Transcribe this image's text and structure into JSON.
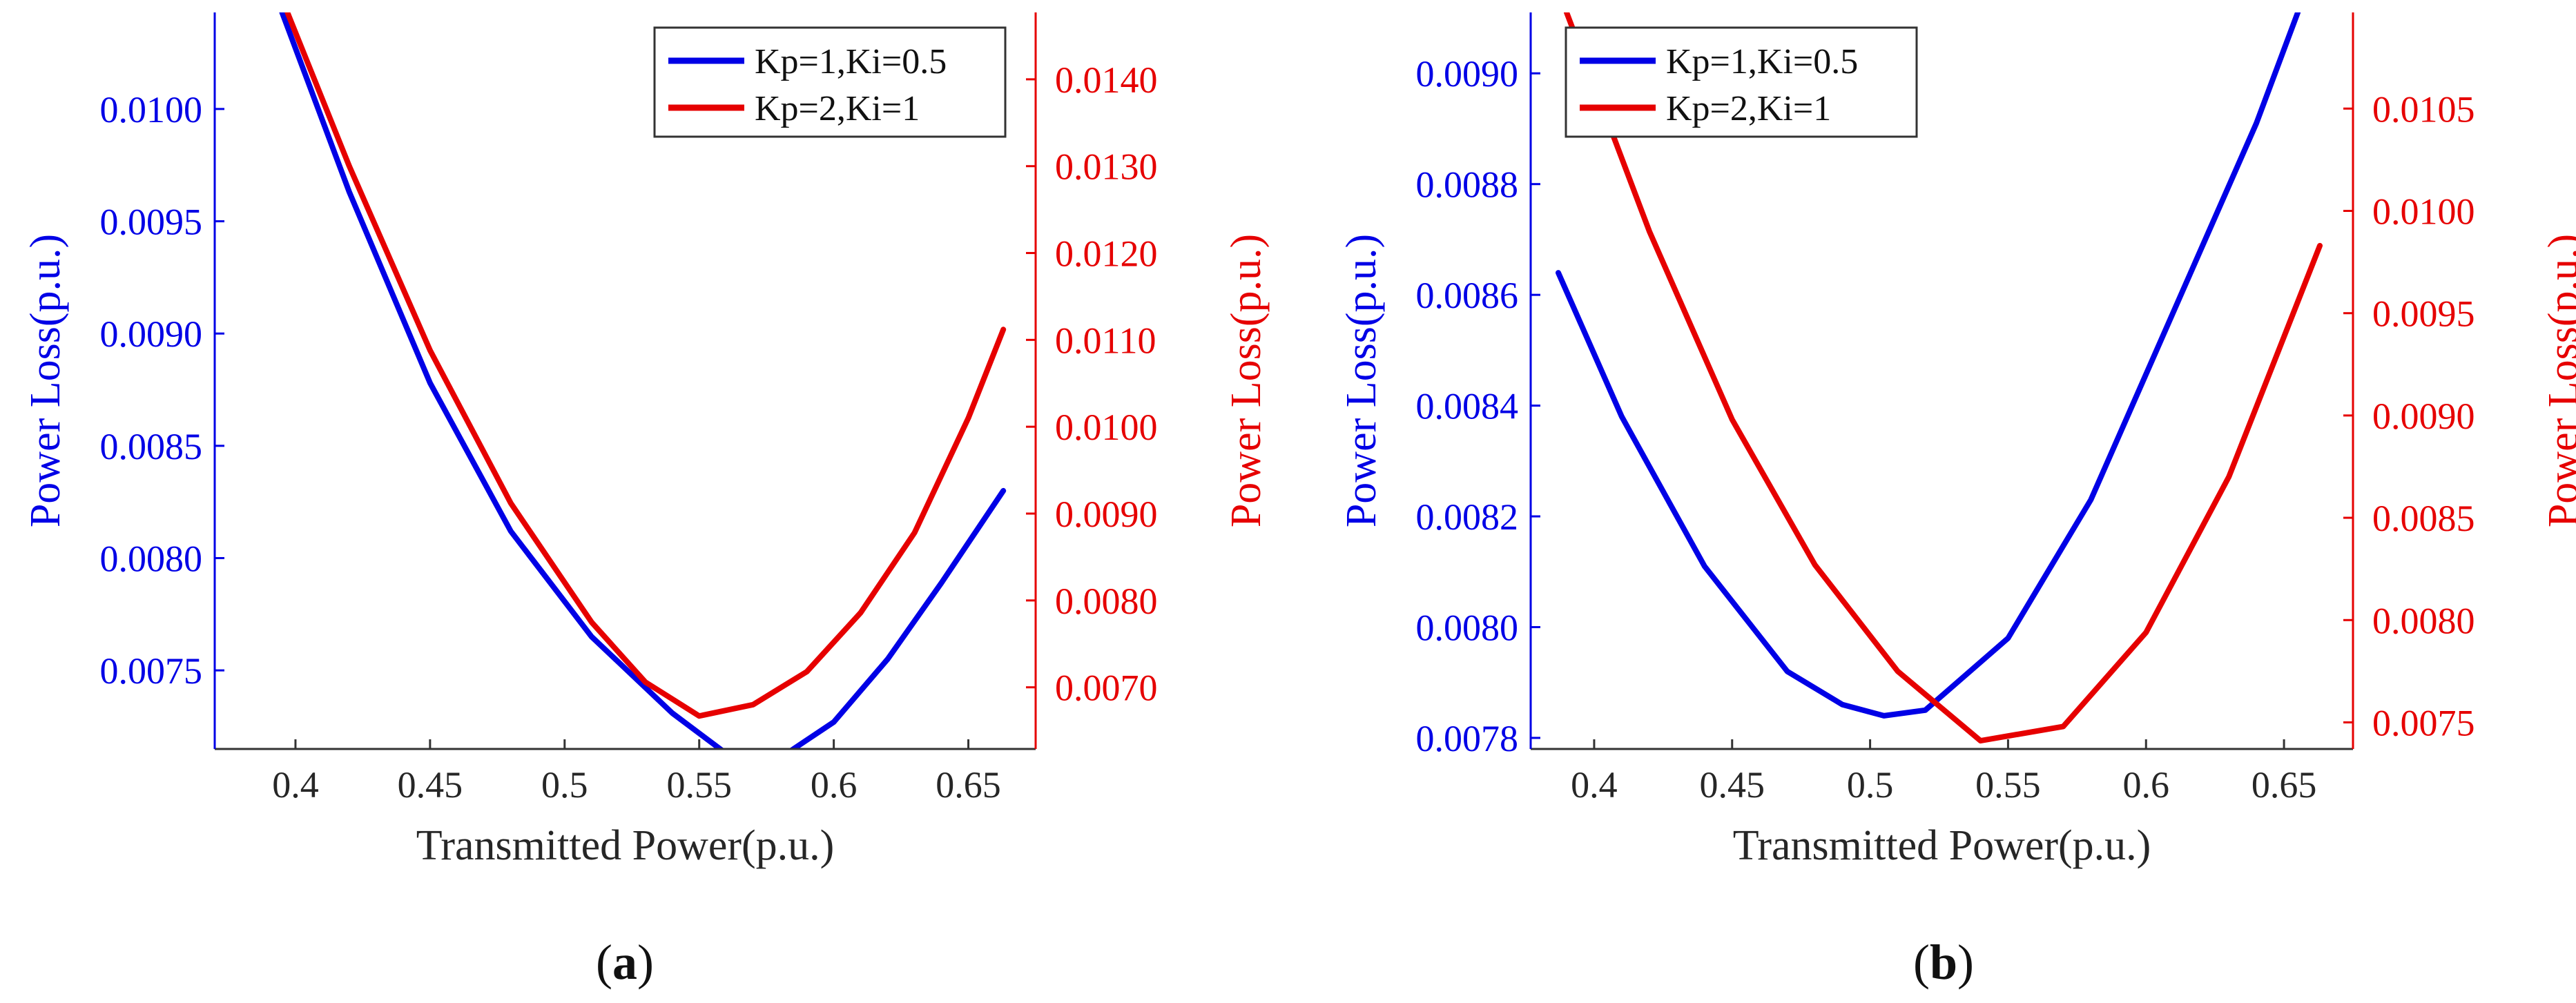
{
  "colors": {
    "blue": "#0000e6",
    "red": "#e60000",
    "axis": "#333333",
    "text": "#262626"
  },
  "chart_data": [
    {
      "type": "line",
      "panel_label": "(a)",
      "caption_letter": "a",
      "xlabel": "Transmitted Power(p.u.)",
      "ylabel_left": "Power Loss(p.u.)",
      "ylabel_right": "Power Loss(p.u.)",
      "xlim": [
        0.37,
        0.675
      ],
      "ylim_left": [
        0.00715,
        0.01043
      ],
      "ylim_right": [
        0.00629,
        0.01477
      ],
      "xticks": [
        0.4,
        0.45,
        0.5,
        0.55,
        0.6,
        0.65
      ],
      "xtick_labels": [
        "0.4",
        "0.45",
        "0.5",
        "0.55",
        "0.6",
        "0.65"
      ],
      "yticks_left": [
        0.0075,
        0.008,
        0.0085,
        0.009,
        0.0095,
        0.01
      ],
      "ytick_labels_left": [
        "0.0075",
        "0.0080",
        "0.0085",
        "0.0090",
        "0.0095",
        "0.0100"
      ],
      "yticks_right": [
        0.007,
        0.008,
        0.009,
        0.01,
        0.011,
        0.012,
        0.013,
        0.014
      ],
      "ytick_labels_right": [
        "0.0070",
        "0.0080",
        "0.0090",
        "0.0100",
        "0.0110",
        "0.0120",
        "0.0130",
        "0.0140"
      ],
      "legend_position": "top-right",
      "series": [
        {
          "name": "Kp=1,Ki=0.5",
          "axis": "left",
          "color": "#0000e6",
          "x": [
            0.395,
            0.42,
            0.45,
            0.48,
            0.51,
            0.54,
            0.56,
            0.58,
            0.6,
            0.62,
            0.64,
            0.663
          ],
          "y": [
            0.01043,
            0.00963,
            0.00878,
            0.00812,
            0.00765,
            0.00731,
            0.00713,
            0.00711,
            0.00727,
            0.00755,
            0.00789,
            0.0083
          ]
        },
        {
          "name": "Kp=2,Ki=1",
          "axis": "right",
          "color": "#e60000",
          "x": [
            0.397,
            0.42,
            0.45,
            0.48,
            0.51,
            0.53,
            0.55,
            0.57,
            0.59,
            0.61,
            0.63,
            0.65,
            0.663
          ],
          "y": [
            0.01477,
            0.013,
            0.01088,
            0.00912,
            0.00775,
            0.00706,
            0.00667,
            0.0068,
            0.00718,
            0.00786,
            0.00878,
            0.0101,
            0.01112
          ]
        }
      ]
    },
    {
      "type": "line",
      "panel_label": "(b)",
      "caption_letter": "b",
      "xlabel": "Transmitted Power(p.u.)",
      "ylabel_left": "Power Loss(p.u.)",
      "ylabel_right": "Power Loss(p.u.)",
      "xlim": [
        0.377,
        0.675
      ],
      "ylim_left": [
        0.00778,
        0.00911
      ],
      "ylim_right": [
        0.00737,
        0.01097
      ],
      "xticks": [
        0.4,
        0.45,
        0.5,
        0.55,
        0.6,
        0.65
      ],
      "xtick_labels": [
        "0.4",
        "0.45",
        "0.5",
        "0.55",
        "0.6",
        "0.65"
      ],
      "yticks_left": [
        0.0078,
        0.008,
        0.0082,
        0.0084,
        0.0086,
        0.0088,
        0.009
      ],
      "ytick_labels_left": [
        "0.0078",
        "0.0080",
        "0.0082",
        "0.0084",
        "0.0086",
        "0.0088",
        "0.0090"
      ],
      "yticks_right": [
        0.0075,
        0.008,
        0.0085,
        0.009,
        0.0095,
        0.01,
        0.0105
      ],
      "ytick_labels_right": [
        "0.0075",
        "0.0080",
        "0.0085",
        "0.0090",
        "0.0095",
        "0.0100",
        "0.0105"
      ],
      "legend_position": "top-left",
      "series": [
        {
          "name": "Kp=1,Ki=0.5",
          "axis": "left",
          "color": "#0000e6",
          "x": [
            0.387,
            0.41,
            0.44,
            0.47,
            0.49,
            0.505,
            0.52,
            0.55,
            0.58,
            0.61,
            0.64,
            0.655
          ],
          "y": [
            0.00864,
            0.00838,
            0.00811,
            0.00792,
            0.00786,
            0.00784,
            0.00785,
            0.00798,
            0.00823,
            0.00857,
            0.00891,
            0.00911
          ]
        },
        {
          "name": "Kp=2,Ki=1",
          "axis": "right",
          "color": "#e60000",
          "x": [
            0.39,
            0.42,
            0.45,
            0.48,
            0.51,
            0.54,
            0.57,
            0.6,
            0.63,
            0.663
          ],
          "y": [
            0.01097,
            0.0099,
            0.00898,
            0.00827,
            0.00775,
            0.00741,
            0.00748,
            0.00794,
            0.0087,
            0.00983
          ]
        }
      ]
    }
  ]
}
